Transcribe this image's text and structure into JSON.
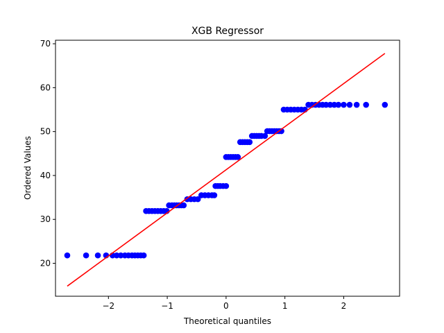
{
  "chart_data": {
    "type": "scatter",
    "title": "XGB Regressor",
    "xlabel": "Theoretical quantiles",
    "ylabel": "Ordered Values",
    "xlim": [
      -2.9,
      2.95
    ],
    "ylim": [
      12.5,
      70.8
    ],
    "xticks": [
      -2,
      -1,
      0,
      1,
      2
    ],
    "yticks": [
      20,
      30,
      40,
      50,
      60,
      70
    ],
    "grid": false,
    "legend": "none",
    "marker_color": "#0000ff",
    "line_color": "#ff0000",
    "fit_line": {
      "x": [
        -2.7,
        2.7
      ],
      "y": [
        14.8,
        67.8
      ]
    },
    "series": [
      {
        "x": [
          -2.7,
          -2.38,
          -2.18,
          -2.04,
          -1.93,
          -1.86,
          -1.79,
          -1.72,
          -1.66,
          -1.6,
          -1.55,
          -1.5,
          -1.45,
          -1.4,
          -1.36,
          -1.31,
          -1.26,
          -1.21,
          -1.16,
          -1.11,
          -1.06,
          -1.01,
          -0.97,
          -0.92,
          -0.88,
          -0.84,
          -0.8,
          -0.76,
          -0.72,
          -0.66,
          -0.6,
          -0.54,
          -0.48,
          -0.42,
          -0.36,
          -0.3,
          -0.24,
          -0.2,
          -0.18,
          -0.14,
          -0.1,
          -0.05,
          0.0,
          0.0,
          0.04,
          0.08,
          0.12,
          0.16,
          0.2,
          0.24,
          0.28,
          0.32,
          0.36,
          0.4,
          0.44,
          0.48,
          0.52,
          0.56,
          0.6,
          0.66,
          0.7,
          0.74,
          0.78,
          0.82,
          0.86,
          0.9,
          0.94,
          0.98,
          1.04,
          1.1,
          1.16,
          1.22,
          1.28,
          1.34,
          1.4,
          1.46,
          1.52,
          1.58,
          1.64,
          1.7,
          1.77,
          1.84,
          1.91,
          2.0,
          2.1,
          2.22,
          2.38,
          2.7
        ],
        "y": [
          21.8,
          21.8,
          21.8,
          21.8,
          21.8,
          21.8,
          21.8,
          21.8,
          21.8,
          21.8,
          21.8,
          21.8,
          21.8,
          21.8,
          31.9,
          31.9,
          31.9,
          31.9,
          31.9,
          31.9,
          31.9,
          31.9,
          33.2,
          33.2,
          33.2,
          33.2,
          33.2,
          33.2,
          33.2,
          34.6,
          34.6,
          34.6,
          34.6,
          35.5,
          35.5,
          35.5,
          35.5,
          35.5,
          37.6,
          37.6,
          37.6,
          37.6,
          37.6,
          44.2,
          44.2,
          44.2,
          44.2,
          44.2,
          44.2,
          47.6,
          47.6,
          47.6,
          47.6,
          47.6,
          49.0,
          49.0,
          49.0,
          49.0,
          49.0,
          49.0,
          50.1,
          50.1,
          50.1,
          50.1,
          50.1,
          50.1,
          50.1,
          55.0,
          55.0,
          55.0,
          55.0,
          55.0,
          55.0,
          55.0,
          56.1,
          56.1,
          56.1,
          56.1,
          56.1,
          56.1,
          56.1,
          56.1,
          56.1,
          56.1,
          56.1,
          56.1,
          56.1,
          56.1
        ]
      }
    ]
  }
}
